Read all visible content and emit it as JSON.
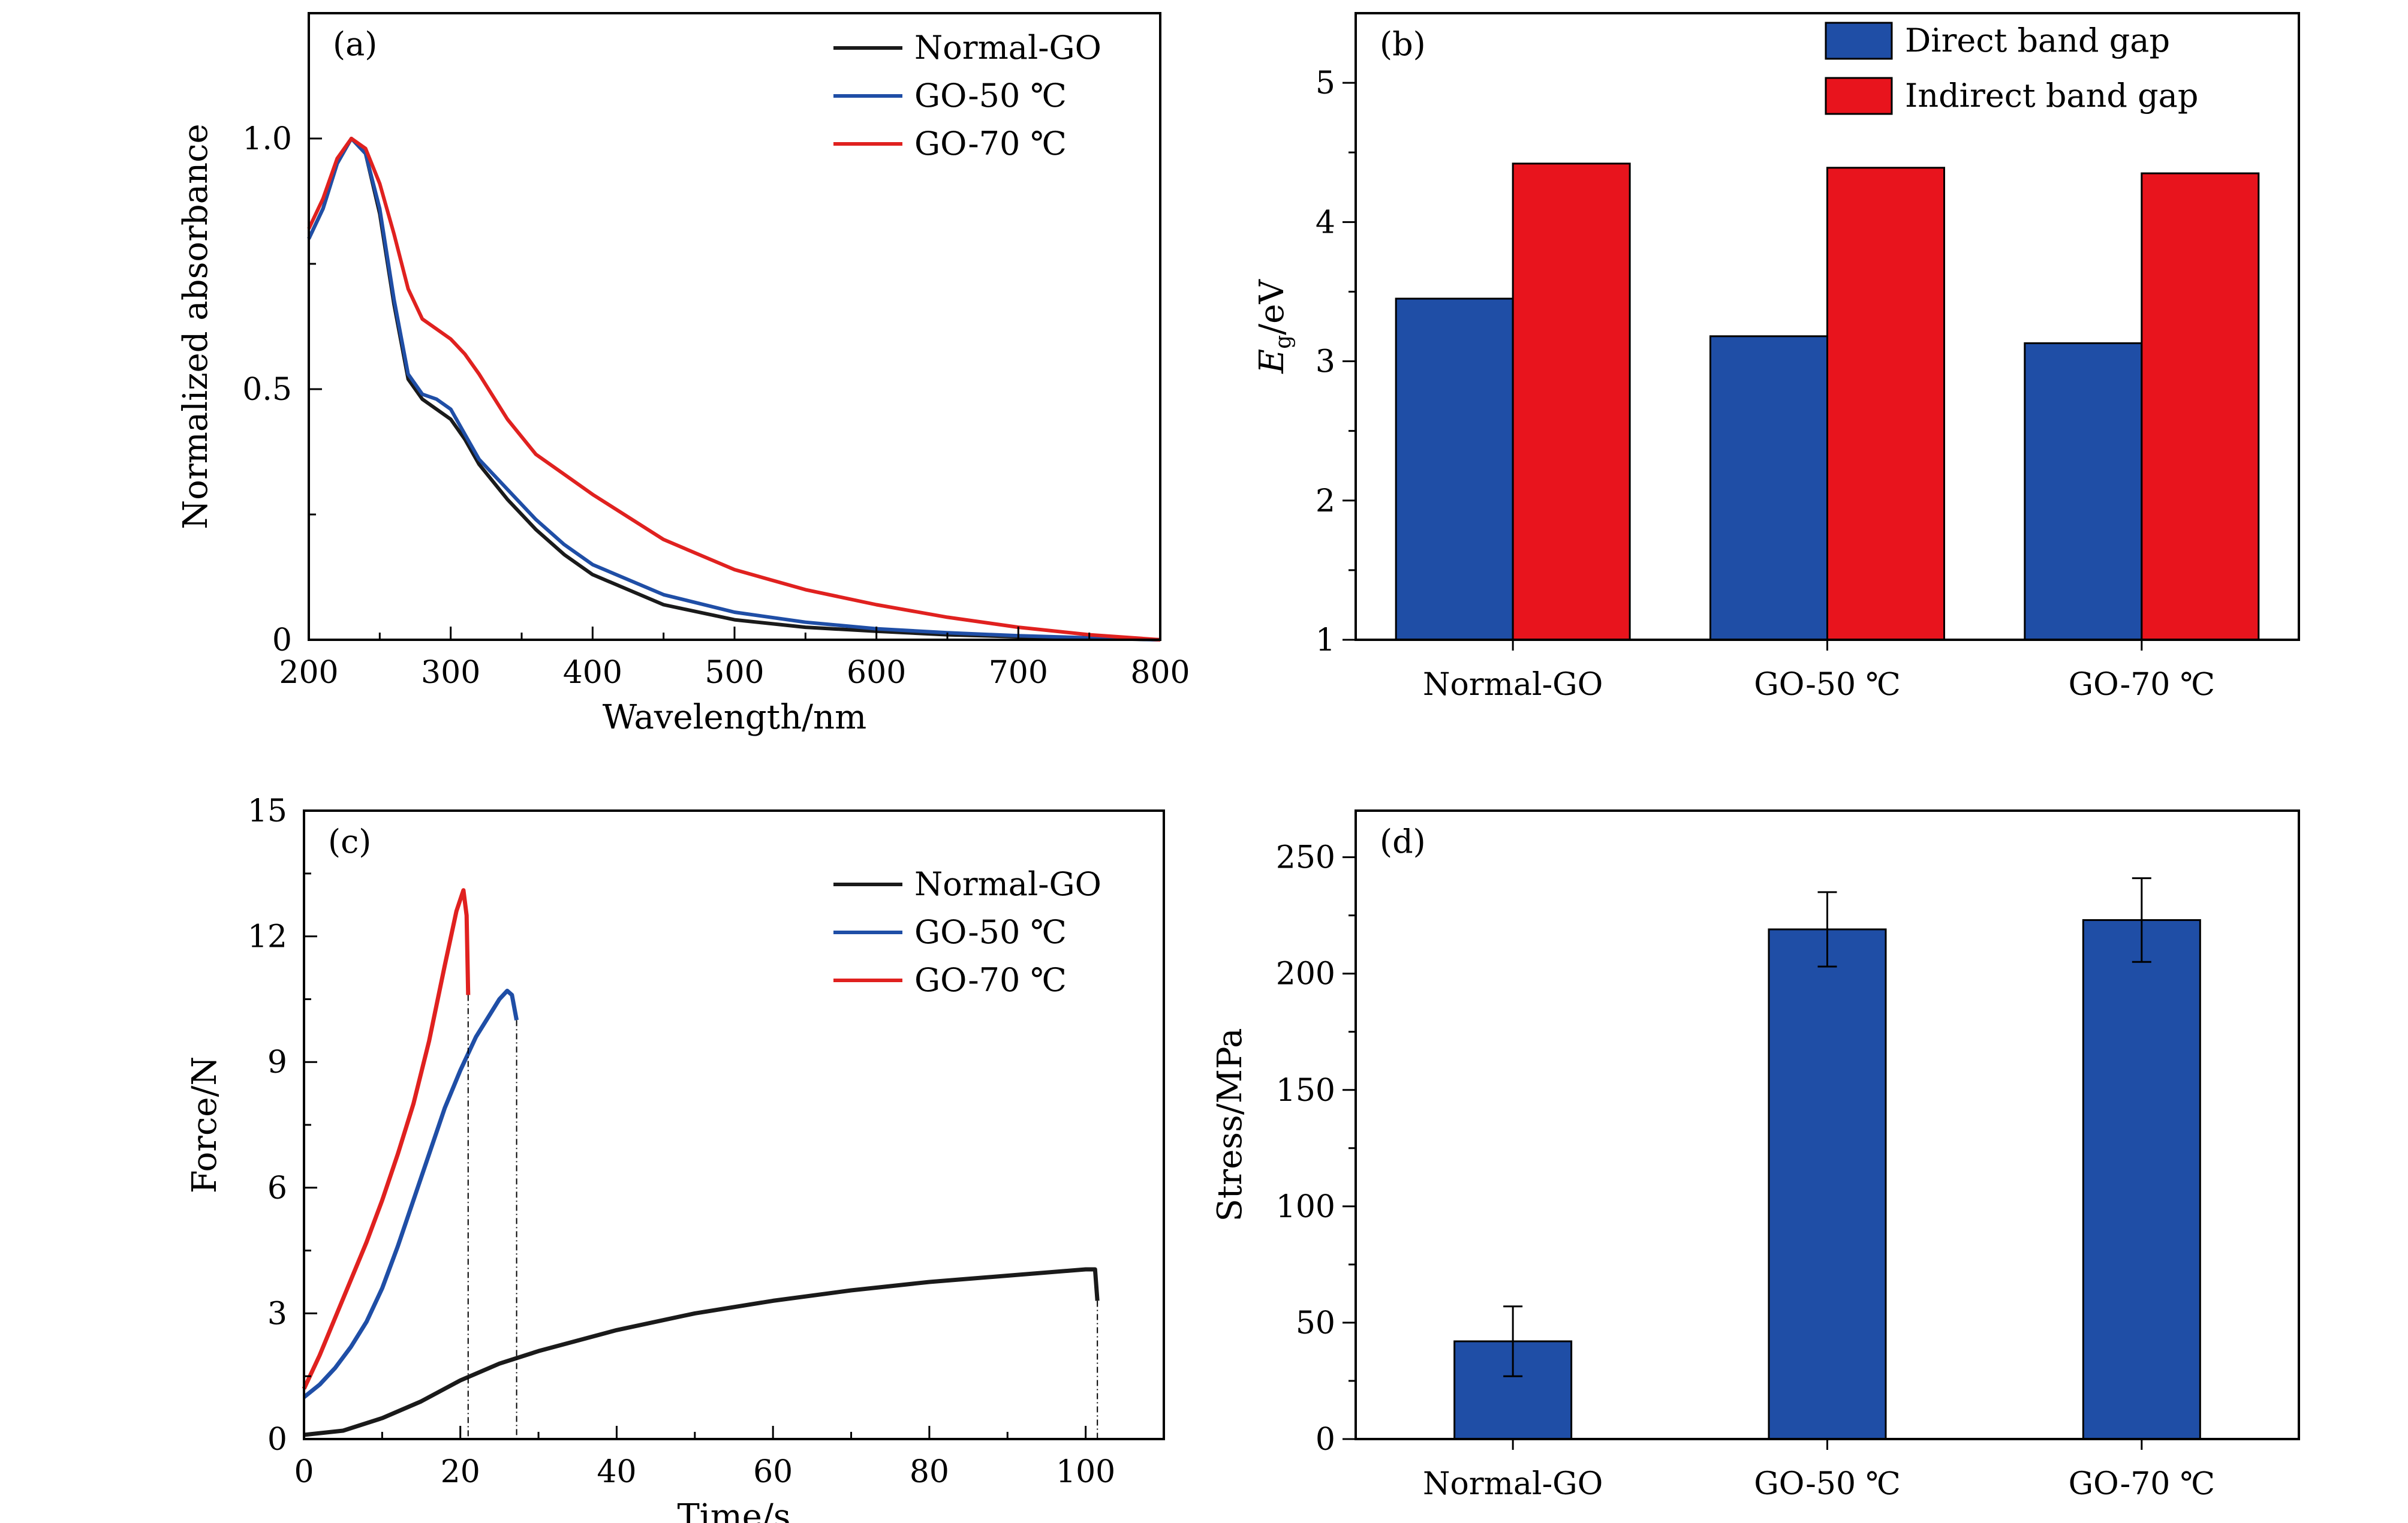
{
  "chart_data": [
    {
      "panel": "(a)",
      "type": "line",
      "xlabel": "Wavelength/nm",
      "ylabel": "Normalized absorbance",
      "xlim": [
        200,
        800
      ],
      "ylim": [
        0,
        1.25
      ],
      "xticks": [
        200,
        300,
        400,
        500,
        600,
        700,
        800
      ],
      "yticks": [
        0,
        0.5,
        1.0
      ],
      "ytick_labels": [
        "0",
        "0.5",
        "1.0"
      ],
      "legend_position": "top-right",
      "series": [
        {
          "name": "Normal-GO",
          "color": "#1a1a1a",
          "x": [
            200,
            210,
            220,
            230,
            240,
            250,
            260,
            270,
            280,
            290,
            300,
            310,
            320,
            340,
            360,
            380,
            400,
            450,
            500,
            550,
            600,
            650,
            700,
            750,
            800
          ],
          "y": [
            0.8,
            0.86,
            0.95,
            1.0,
            0.97,
            0.85,
            0.67,
            0.52,
            0.48,
            0.46,
            0.44,
            0.4,
            0.35,
            0.28,
            0.22,
            0.17,
            0.13,
            0.07,
            0.04,
            0.025,
            0.017,
            0.01,
            0.006,
            0.003,
            0.0
          ]
        },
        {
          "name": "GO-50 ℃",
          "color": "#1f4ea6",
          "x": [
            200,
            210,
            220,
            230,
            240,
            250,
            260,
            270,
            280,
            290,
            300,
            310,
            320,
            340,
            360,
            380,
            400,
            450,
            500,
            550,
            600,
            650,
            700,
            750,
            800
          ],
          "y": [
            0.8,
            0.86,
            0.95,
            1.0,
            0.97,
            0.86,
            0.68,
            0.53,
            0.49,
            0.48,
            0.46,
            0.41,
            0.36,
            0.3,
            0.24,
            0.19,
            0.15,
            0.09,
            0.055,
            0.035,
            0.022,
            0.014,
            0.008,
            0.004,
            0.0
          ]
        },
        {
          "name": "GO-70 ℃",
          "color": "#e0211f",
          "x": [
            200,
            210,
            220,
            230,
            240,
            250,
            260,
            270,
            280,
            290,
            300,
            310,
            320,
            340,
            360,
            380,
            400,
            450,
            500,
            550,
            600,
            650,
            700,
            750,
            800
          ],
          "y": [
            0.82,
            0.88,
            0.96,
            1.0,
            0.98,
            0.91,
            0.81,
            0.7,
            0.64,
            0.62,
            0.6,
            0.57,
            0.53,
            0.44,
            0.37,
            0.33,
            0.29,
            0.2,
            0.14,
            0.1,
            0.07,
            0.045,
            0.025,
            0.01,
            0.0
          ]
        }
      ]
    },
    {
      "panel": "(b)",
      "type": "bar",
      "ylabel_main": "E",
      "ylabel_sub": "g",
      "ylabel_rest": "/eV",
      "ylim": [
        1,
        5.5
      ],
      "yticks": [
        1,
        2,
        3,
        4,
        5
      ],
      "categories": [
        "Normal-GO",
        "GO-50 ℃",
        "GO-70 ℃"
      ],
      "legend_position": "top-right",
      "series": [
        {
          "name": "Direct band gap",
          "color": "#1f4ea6",
          "values": [
            3.45,
            3.18,
            3.13
          ]
        },
        {
          "name": "Indirect band gap",
          "color": "#e8141d",
          "values": [
            4.42,
            4.39,
            4.35
          ]
        }
      ]
    },
    {
      "panel": "(c)",
      "type": "line",
      "xlabel": "Time/s",
      "ylabel": "Force/N",
      "xlim": [
        0,
        110
      ],
      "ylim": [
        0,
        15
      ],
      "xticks": [
        0,
        20,
        40,
        60,
        80,
        100
      ],
      "yticks": [
        0,
        3,
        6,
        9,
        12,
        15
      ],
      "legend_position": "top-right",
      "series": [
        {
          "name": "Normal-GO",
          "color": "#1a1a1a",
          "break_x": 101.5,
          "x": [
            0,
            5,
            10,
            15,
            20,
            25,
            30,
            40,
            50,
            60,
            70,
            80,
            90,
            100,
            101.2,
            101.5
          ],
          "y": [
            0.1,
            0.2,
            0.5,
            0.9,
            1.4,
            1.8,
            2.1,
            2.6,
            3.0,
            3.3,
            3.55,
            3.75,
            3.9,
            4.05,
            4.05,
            3.3
          ]
        },
        {
          "name": "GO-50 ℃",
          "color": "#1f4ea6",
          "break_x": 27.2,
          "x": [
            0,
            2,
            4,
            6,
            8,
            10,
            12,
            14,
            16,
            18,
            20,
            22,
            24,
            25,
            26,
            26.6,
            27.2
          ],
          "y": [
            1.0,
            1.3,
            1.7,
            2.2,
            2.8,
            3.6,
            4.6,
            5.7,
            6.8,
            7.9,
            8.8,
            9.6,
            10.2,
            10.5,
            10.7,
            10.6,
            10.0
          ]
        },
        {
          "name": "GO-70 ℃",
          "color": "#e0211f",
          "break_x": 21.0,
          "x": [
            0,
            2,
            4,
            6,
            8,
            10,
            12,
            14,
            16,
            18,
            19.5,
            20.4,
            20.8,
            21.0
          ],
          "y": [
            1.2,
            2.0,
            2.9,
            3.8,
            4.7,
            5.7,
            6.8,
            8.0,
            9.5,
            11.3,
            12.6,
            13.1,
            12.5,
            10.6
          ]
        }
      ]
    },
    {
      "panel": "(d)",
      "type": "bar",
      "ylabel": "Stress/MPa",
      "ylim": [
        0,
        270
      ],
      "yticks": [
        0,
        50,
        100,
        150,
        200,
        250
      ],
      "categories": [
        "Normal-GO",
        "GO-50 ℃",
        "GO-70 ℃"
      ],
      "series": [
        {
          "color": "#1f4ea6",
          "values": [
            42,
            219,
            223
          ],
          "errors": [
            15,
            16,
            18
          ]
        }
      ]
    }
  ]
}
